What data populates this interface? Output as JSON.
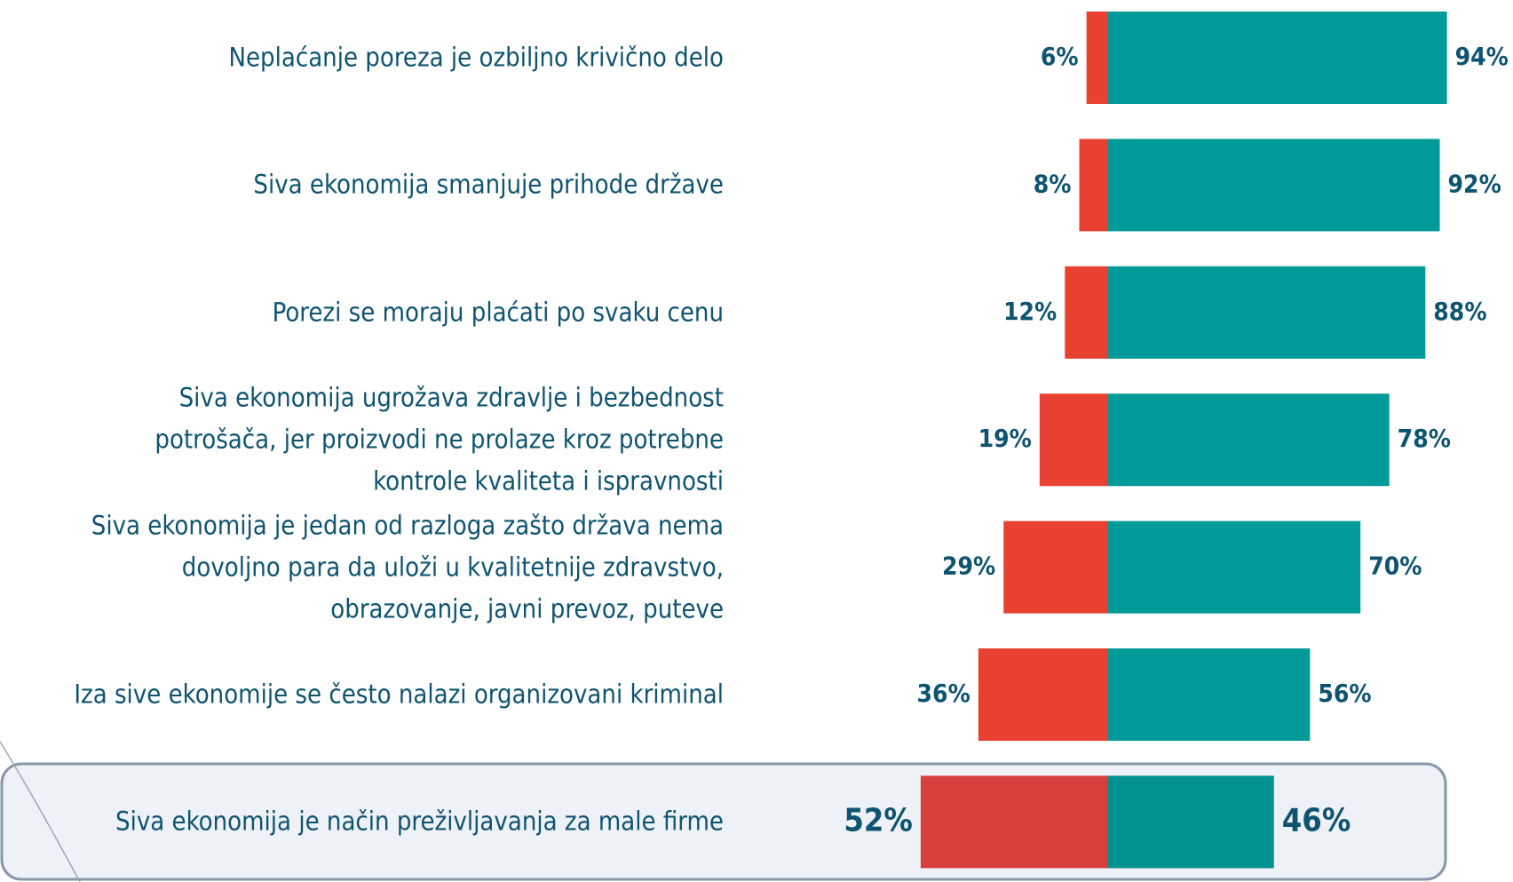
{
  "chart_data": {
    "type": "diverging_bar",
    "categories": [
      "Neplaćanje poreza je ozbiljno krivično delo",
      "Siva ekonomija smanjuje prihode države",
      "Porezi se moraju plaćati po svaku cenu",
      "Siva ekonomija ugrožava zdravlje i bezbednost\npotrošača, jer proizvodi ne prolaze kroz potrebne\nkontrole kvaliteta i ispravnosti",
      "Siva ekonomija je jedan od razloga zašto država nema\ndovoljno para da uloži u kvalitetnije zdravstvo,\nobrazovanje, javni prevoz, puteve",
      "Iza sive ekonomije se često nalazi organizovani kriminal",
      "Siva ekonomija je način preživljavanja za male firme"
    ],
    "series": [
      {
        "color": "#e84132",
        "values": [
          6,
          8,
          12,
          19,
          29,
          36,
          52
        ],
        "value_labels": [
          "6%",
          "8%",
          "12%",
          "19%",
          "29%",
          "36%",
          "52%"
        ]
      },
      {
        "color": "#009a98",
        "values": [
          94,
          92,
          88,
          78,
          70,
          56,
          46
        ],
        "value_labels": [
          "94%",
          "92%",
          "88%",
          "78%",
          "70%",
          "56%",
          "46%"
        ]
      }
    ]
  }
}
